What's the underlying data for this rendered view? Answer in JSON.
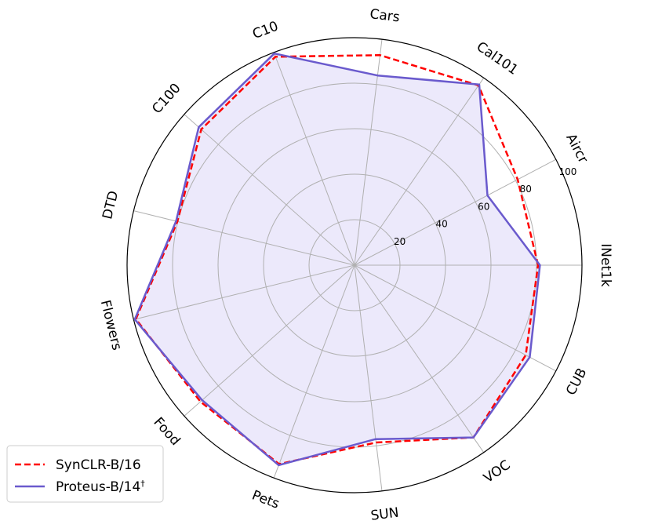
{
  "chart_data": {
    "type": "radar",
    "title": "",
    "axes": [
      "INet1k",
      "Aircr",
      "Cal101",
      "Cars",
      "C10",
      "C100",
      "DTD",
      "Flowers",
      "Food",
      "Pets",
      "SUN",
      "VOC",
      "CUB"
    ],
    "r_ticks": [
      20,
      40,
      60,
      80,
      100
    ],
    "r_tick_labels": [
      "20",
      "40",
      "60",
      "80",
      "100"
    ],
    "rlim": [
      0,
      100
    ],
    "grid": true,
    "legend_position": "bottom-left",
    "series": [
      {
        "name": "SynCLR-B/16",
        "color": "#ff0000",
        "line_style": "dashed",
        "fill": false,
        "values": [
          80.7,
          81.0,
          96.0,
          93.0,
          98.0,
          90.0,
          80.2,
          99.0,
          90.5,
          93.5,
          78.5,
          92.0,
          85.0
        ]
      },
      {
        "name": "Proteus-B/14",
        "name_suffix": "†",
        "color": "#6a5acd",
        "line_style": "solid",
        "fill": true,
        "fill_color": "#ece9fb",
        "values": [
          81.5,
          66.0,
          96.5,
          84.0,
          99.5,
          91.5,
          80.8,
          99.5,
          89.5,
          94.0,
          77.0,
          92.0,
          87.0
        ]
      }
    ]
  }
}
